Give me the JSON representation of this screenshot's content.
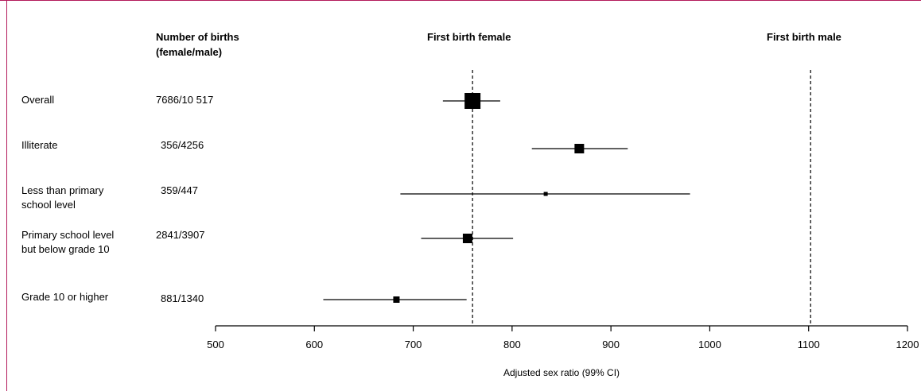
{
  "headers": {
    "births": [
      "Number of births",
      "(female/male)"
    ],
    "female": "First birth female",
    "male": "First birth male"
  },
  "chart_data": {
    "type": "forest",
    "xlabel": "Adjusted sex ratio (99% CI)",
    "xlim": [
      500,
      1200
    ],
    "xticks": [
      500,
      600,
      700,
      800,
      900,
      1000,
      1100,
      1200
    ],
    "reference_lines": [
      {
        "group": "First birth female",
        "value": 760
      },
      {
        "group": "First birth male",
        "value": 1102
      }
    ],
    "rows": [
      {
        "label": [
          "Overall"
        ],
        "births": "7686/10 517",
        "estimate": 760,
        "ci": [
          730,
          788
        ],
        "weight": "large"
      },
      {
        "label": [
          "Illiterate"
        ],
        "births": "356/4256",
        "estimate": 868,
        "ci": [
          820,
          917
        ],
        "weight": "medium"
      },
      {
        "label": [
          "Less than primary",
          "school level"
        ],
        "births": "359/447",
        "estimate": 834,
        "ci": [
          687,
          980
        ],
        "weight": "tiny"
      },
      {
        "label": [
          "Primary school level",
          "but below grade 10"
        ],
        "births": "2841/3907",
        "estimate": 755,
        "ci": [
          708,
          801
        ],
        "weight": "medium"
      },
      {
        "label": [
          "Grade 10 or higher"
        ],
        "births": "881/1340",
        "estimate": 683,
        "ci": [
          609,
          754
        ],
        "weight": "small"
      }
    ]
  }
}
